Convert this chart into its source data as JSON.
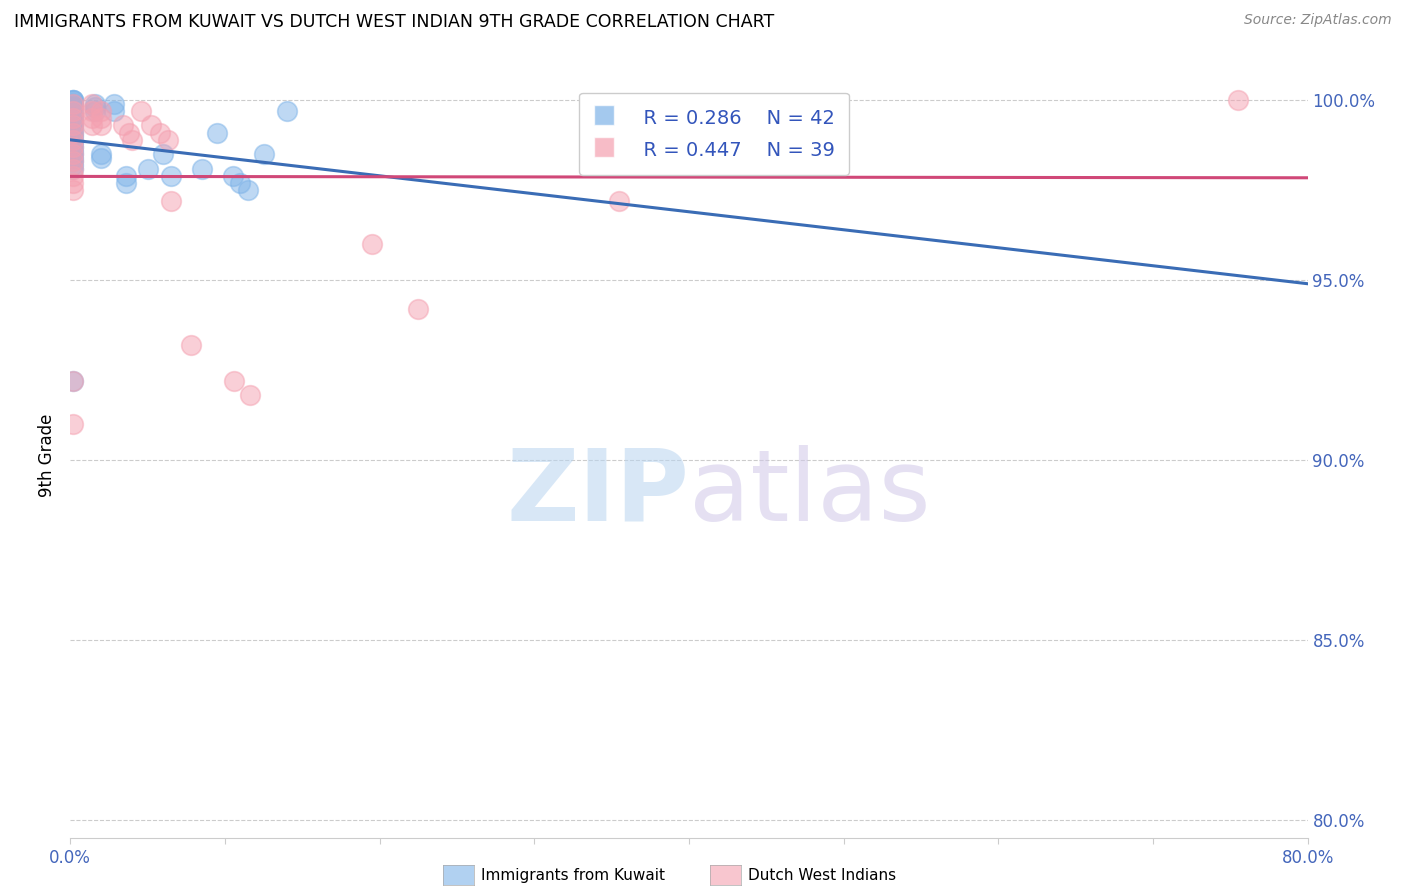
{
  "title": "IMMIGRANTS FROM KUWAIT VS DUTCH WEST INDIAN 9TH GRADE CORRELATION CHART",
  "source": "Source: ZipAtlas.com",
  "ylabel": "9th Grade",
  "xlim": [
    0.0,
    0.8
  ],
  "ylim": [
    0.795,
    1.008
  ],
  "yticks": [
    0.8,
    0.85,
    0.9,
    0.95,
    1.0
  ],
  "yticklabels": [
    "80.0%",
    "85.0%",
    "90.0%",
    "95.0%",
    "100.0%"
  ],
  "legend_r": [
    "R = 0.286",
    "R = 0.447"
  ],
  "legend_n": [
    "N = 42",
    "N = 39"
  ],
  "blue_color": "#7EB3E8",
  "pink_color": "#F4A0B0",
  "blue_line_color": "#3A6CB5",
  "pink_line_color": "#D04878",
  "blue_scatter": [
    [
      0.002,
      1.0
    ],
    [
      0.002,
      1.0
    ],
    [
      0.002,
      1.0
    ],
    [
      0.002,
      0.999
    ],
    [
      0.002,
      0.998
    ],
    [
      0.002,
      0.997
    ],
    [
      0.002,
      0.996
    ],
    [
      0.002,
      0.995
    ],
    [
      0.002,
      0.994
    ],
    [
      0.002,
      0.993
    ],
    [
      0.002,
      0.992
    ],
    [
      0.002,
      0.991
    ],
    [
      0.002,
      0.99
    ],
    [
      0.002,
      0.989
    ],
    [
      0.002,
      0.988
    ],
    [
      0.002,
      0.987
    ],
    [
      0.002,
      0.986
    ],
    [
      0.002,
      0.985
    ],
    [
      0.002,
      0.984
    ],
    [
      0.002,
      0.983
    ],
    [
      0.002,
      0.982
    ],
    [
      0.002,
      0.981
    ],
    [
      0.002,
      0.922
    ],
    [
      0.016,
      0.999
    ],
    [
      0.016,
      0.998
    ],
    [
      0.016,
      0.997
    ],
    [
      0.02,
      0.985
    ],
    [
      0.02,
      0.984
    ],
    [
      0.028,
      0.999
    ],
    [
      0.028,
      0.997
    ],
    [
      0.036,
      0.979
    ],
    [
      0.036,
      0.977
    ],
    [
      0.05,
      0.981
    ],
    [
      0.06,
      0.985
    ],
    [
      0.065,
      0.979
    ],
    [
      0.085,
      0.981
    ],
    [
      0.095,
      0.991
    ],
    [
      0.105,
      0.979
    ],
    [
      0.11,
      0.977
    ],
    [
      0.115,
      0.975
    ],
    [
      0.125,
      0.985
    ],
    [
      0.14,
      0.997
    ]
  ],
  "pink_scatter": [
    [
      0.002,
      0.999
    ],
    [
      0.002,
      0.997
    ],
    [
      0.002,
      0.995
    ],
    [
      0.002,
      0.993
    ],
    [
      0.002,
      0.991
    ],
    [
      0.002,
      0.989
    ],
    [
      0.002,
      0.987
    ],
    [
      0.002,
      0.985
    ],
    [
      0.002,
      0.983
    ],
    [
      0.002,
      0.981
    ],
    [
      0.002,
      0.979
    ],
    [
      0.002,
      0.977
    ],
    [
      0.002,
      0.975
    ],
    [
      0.002,
      0.922
    ],
    [
      0.002,
      0.91
    ],
    [
      0.014,
      0.999
    ],
    [
      0.014,
      0.997
    ],
    [
      0.014,
      0.995
    ],
    [
      0.014,
      0.993
    ],
    [
      0.02,
      0.997
    ],
    [
      0.02,
      0.995
    ],
    [
      0.02,
      0.993
    ],
    [
      0.034,
      0.993
    ],
    [
      0.038,
      0.991
    ],
    [
      0.04,
      0.989
    ],
    [
      0.046,
      0.997
    ],
    [
      0.052,
      0.993
    ],
    [
      0.058,
      0.991
    ],
    [
      0.063,
      0.989
    ],
    [
      0.065,
      0.972
    ],
    [
      0.078,
      0.932
    ],
    [
      0.106,
      0.922
    ],
    [
      0.116,
      0.918
    ],
    [
      0.195,
      0.96
    ],
    [
      0.225,
      0.942
    ],
    [
      0.355,
      0.972
    ],
    [
      0.375,
      0.993
    ],
    [
      0.435,
      0.987
    ],
    [
      0.755,
      1.0
    ]
  ],
  "watermark_zip": "ZIP",
  "watermark_atlas": "atlas",
  "grid_color": "#cccccc",
  "background_color": "#ffffff",
  "legend_label_blue": "Immigrants from Kuwait",
  "legend_label_pink": "Dutch West Indians"
}
